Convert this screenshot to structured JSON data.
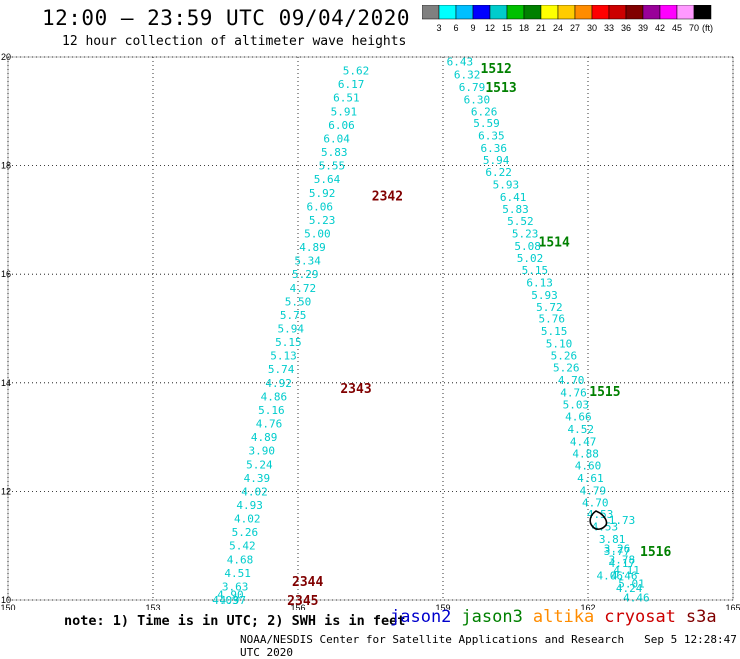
{
  "header": {
    "title": "12:00 — 23:59 UTC 09/04/2020",
    "subtitle": "12 hour collection of altimeter wave heights"
  },
  "scale": {
    "colors": [
      "#808080",
      "#00ffff",
      "#00bfff",
      "#0000ff",
      "#00cccc",
      "#00c000",
      "#008000",
      "#ffff00",
      "#ffcc00",
      "#ff8c00",
      "#ff0000",
      "#cc0000",
      "#800000",
      "#990099",
      "#ff00ff",
      "#ff99ff",
      "#000000"
    ],
    "labels": [
      "3",
      "6",
      "9",
      "12",
      "15",
      "18",
      "21",
      "24",
      "27",
      "30",
      "33",
      "36",
      "39",
      "42",
      "45",
      "70"
    ],
    "unit": "(ft)"
  },
  "map": {
    "x_ticks": [
      "150",
      "153",
      "156",
      "159",
      "162",
      "165"
    ],
    "y_ticks": [
      "10",
      "12",
      "14",
      "16",
      "18",
      "20"
    ],
    "value_color": "#00cccc",
    "tracks": [
      {
        "x": [
          157.2,
          157.1,
          157.0,
          156.95,
          156.9,
          156.8,
          156.75,
          156.7,
          156.6,
          156.5,
          156.45,
          156.5,
          156.4,
          156.3,
          156.2,
          156.15,
          156.1,
          156.0,
          155.9,
          155.85,
          155.8,
          155.7,
          155.65,
          155.6,
          155.5,
          155.45,
          155.4,
          155.3,
          155.25,
          155.2,
          155.15,
          155.1,
          155.0,
          154.95,
          154.9,
          154.85,
          154.8,
          154.75,
          154.7,
          154.65,
          154.6,
          154.5
        ],
        "y": [
          19.75,
          19.5,
          19.25,
          19.0,
          18.75,
          18.5,
          18.25,
          18.0,
          17.75,
          17.5,
          17.25,
          17.0,
          16.75,
          16.5,
          16.25,
          16.0,
          15.75,
          15.5,
          15.25,
          15.0,
          14.75,
          14.5,
          14.25,
          14.0,
          13.75,
          13.5,
          13.25,
          13.0,
          12.75,
          12.5,
          12.25,
          12.0,
          11.75,
          11.5,
          11.25,
          11.0,
          10.75,
          10.5,
          10.25,
          10.0,
          10.1,
          10.0
        ],
        "values": [
          "5.62",
          "6.17",
          "6.51",
          "5.91",
          "6.06",
          "6.04",
          "5.83",
          "5.55",
          "5.64",
          "5.92",
          "6.06",
          "5.23",
          "5.00",
          "4.89",
          "5.34",
          "5.29",
          "4.72",
          "5.50",
          "5.75",
          "5.94",
          "5.15",
          "5.13",
          "5.74",
          "4.92",
          "4.86",
          "5.16",
          "4.76",
          "4.89",
          "3.90",
          "5.24",
          "4.39",
          "4.02",
          "4.93",
          "4.02",
          "5.26",
          "5.42",
          "4.68",
          "4.51",
          "3.63",
          "4.97",
          "4.90",
          "4.03"
        ]
      },
      {
        "x": [
          159.35,
          159.5,
          159.6,
          159.7,
          159.85,
          159.9,
          160.0,
          160.05,
          160.1,
          160.15,
          160.3,
          160.45,
          160.5,
          160.6,
          160.7,
          160.75,
          160.8,
          160.9,
          161.0,
          161.1,
          161.2,
          161.25,
          161.3,
          161.4,
          161.5,
          161.55,
          161.65,
          161.7,
          161.75,
          161.8,
          161.85,
          161.9,
          161.95,
          162.0,
          162.05,
          162.1,
          162.15,
          162.25,
          162.35,
          162.5,
          162.6,
          162.7,
          162.75,
          162.85
        ],
        "y": [
          19.92,
          19.68,
          19.45,
          19.22,
          19.0,
          18.78,
          18.55,
          18.32,
          18.1,
          17.88,
          17.65,
          17.42,
          17.2,
          16.98,
          16.75,
          16.52,
          16.3,
          16.08,
          15.85,
          15.62,
          15.4,
          15.18,
          14.95,
          14.72,
          14.5,
          14.28,
          14.05,
          13.82,
          13.6,
          13.38,
          13.15,
          12.92,
          12.7,
          12.48,
          12.25,
          12.02,
          11.8,
          11.58,
          11.35,
          11.12,
          10.9,
          10.68,
          10.45,
          10.22
        ],
        "values": [
          "6.43",
          "6.32",
          "6.79",
          "6.30",
          "6.26",
          "5.59",
          "6.35",
          "6.36",
          "5.94",
          "6.22",
          "5.93",
          "6.41",
          "5.83",
          "5.52",
          "5.23",
          "5.08",
          "5.02",
          "5.15",
          "6.13",
          "5.93",
          "5.72",
          "5.76",
          "5.15",
          "5.10",
          "5.26",
          "5.26",
          "4.70",
          "4.76",
          "5.03",
          "4.66",
          "4.52",
          "4.47",
          "4.88",
          "4.60",
          "4.61",
          "4.79",
          "4.70",
          "4.53",
          "4.53",
          "3.81",
          "3.77",
          "4.17",
          "4.46",
          "4.24"
        ]
      },
      {
        "x": [
          162.45,
          162.6,
          162.7,
          162.8,
          162.9,
          163.0
        ],
        "y": [
          10.45,
          10.95,
          10.75,
          10.55,
          10.3,
          10.05
        ],
        "values": [
          "4.06",
          "3.26",
          "3.78",
          "4.11",
          "5.01",
          "4.46"
        ]
      }
    ],
    "island": {
      "value": "1.73"
    },
    "pass_labels": [
      {
        "text": "1512",
        "x": 160.1,
        "y": 19.8,
        "color": "#008000"
      },
      {
        "text": "1513",
        "x": 160.2,
        "y": 19.45,
        "color": "#008000"
      },
      {
        "text": "1514",
        "x": 161.3,
        "y": 16.6,
        "color": "#008000"
      },
      {
        "text": "1515",
        "x": 162.35,
        "y": 13.85,
        "color": "#008000"
      },
      {
        "text": "1516",
        "x": 163.4,
        "y": 10.9,
        "color": "#008000"
      },
      {
        "text": "2342",
        "x": 157.85,
        "y": 17.45,
        "color": "#800000"
      },
      {
        "text": "2343",
        "x": 157.2,
        "y": 13.9,
        "color": "#800000"
      },
      {
        "text": "2344",
        "x": 156.2,
        "y": 10.35,
        "color": "#800000"
      },
      {
        "text": "2345",
        "x": 156.1,
        "y": 10.0,
        "color": "#800000"
      }
    ]
  },
  "note": "note: 1) Time is in UTC; 2) SWH is in feet",
  "legend": [
    {
      "label": "jason2",
      "color": "#0000cc"
    },
    {
      "label": "jason3",
      "color": "#008000"
    },
    {
      "label": "altika",
      "color": "#ff8c00"
    },
    {
      "label": "cryosat",
      "color": "#cc0000"
    },
    {
      "label": "s3a",
      "color": "#800000"
    }
  ],
  "footer": {
    "credit": "NOAA/NESDIS Center for Satellite Applications and Research",
    "timestamp": "Sep  5 12:28:47 UTC 2020"
  }
}
